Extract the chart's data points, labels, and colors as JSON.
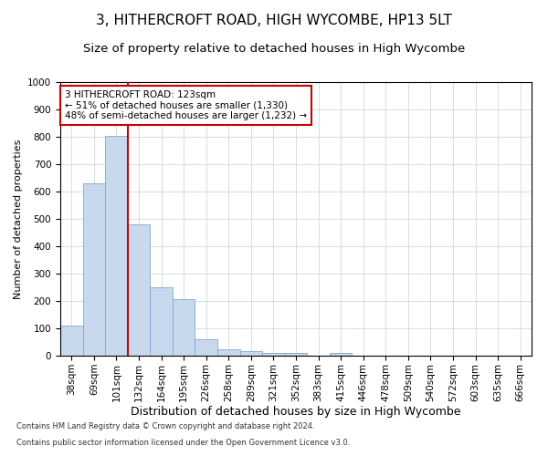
{
  "title1": "3, HITHERCROFT ROAD, HIGH WYCOMBE, HP13 5LT",
  "title2": "Size of property relative to detached houses in High Wycombe",
  "xlabel": "Distribution of detached houses by size in High Wycombe",
  "ylabel": "Number of detached properties",
  "footnote1": "Contains HM Land Registry data © Crown copyright and database right 2024.",
  "footnote2": "Contains public sector information licensed under the Open Government Licence v3.0.",
  "categories": [
    "38sqm",
    "69sqm",
    "101sqm",
    "132sqm",
    "164sqm",
    "195sqm",
    "226sqm",
    "258sqm",
    "289sqm",
    "321sqm",
    "352sqm",
    "383sqm",
    "415sqm",
    "446sqm",
    "478sqm",
    "509sqm",
    "540sqm",
    "572sqm",
    "603sqm",
    "635sqm",
    "666sqm"
  ],
  "values": [
    110,
    630,
    805,
    480,
    250,
    207,
    60,
    25,
    17,
    10,
    10,
    0,
    10,
    0,
    0,
    0,
    0,
    0,
    0,
    0,
    0
  ],
  "bar_color": "#c8d9ee",
  "bar_edge_color": "#7aaad0",
  "vline_color": "#cc0000",
  "vline_index": 2.5,
  "annotation_line1": "3 HITHERCROFT ROAD: 123sqm",
  "annotation_line2": "← 51% of detached houses are smaller (1,330)",
  "annotation_line3": "48% of semi-detached houses are larger (1,232) →",
  "annotation_box_color": "#ffffff",
  "annotation_box_edge": "#cc0000",
  "ylim": [
    0,
    1000
  ],
  "yticks": [
    0,
    100,
    200,
    300,
    400,
    500,
    600,
    700,
    800,
    900,
    1000
  ],
  "bg_color": "#ffffff",
  "grid_color": "#c8d0d8",
  "title1_fontsize": 11,
  "title2_fontsize": 9.5,
  "xlabel_fontsize": 9,
  "ylabel_fontsize": 8,
  "tick_fontsize": 7.5,
  "annot_fontsize": 7.5,
  "footnote_fontsize": 6
}
